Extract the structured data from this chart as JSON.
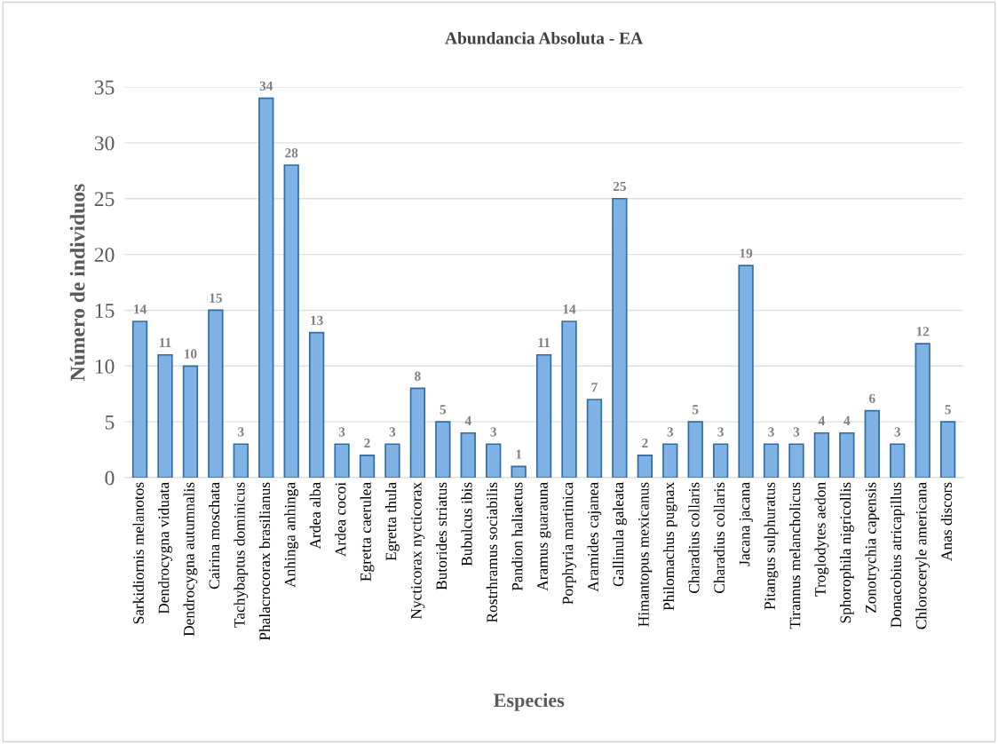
{
  "chart_data": {
    "type": "bar",
    "title": "Abundancia Absoluta - EA",
    "xlabel": "Especies",
    "ylabel": "Número de individuos",
    "categories": [
      "Sarkidiornis melanotos",
      "Dendrocygna viduata",
      "Dendrocygna autumnalis",
      "Cairina moschata",
      "Tachybaptus dominicus",
      "Phalacrocorax brasilianus",
      "Anhinga anhinga",
      "Ardea alba",
      "Ardea cocoi",
      "Egretta caerulea",
      "Egretta thula",
      "Nycticorax nycticorax",
      "Butorides striatus",
      "Bubulcus ibis",
      "Rostrhramus sociabilis",
      "Pandion haliaetus",
      "Aramus guarauna",
      "Porphyria martinica",
      "Aramides cajanea",
      "Gallinula galeata",
      "Himantopus mexicanus",
      "Philomachus pugnax",
      "Charadius collaris",
      "Charadius collaris",
      "Jacana jacana",
      "Pitangus sulphuratus",
      "Tirannus melancholicus",
      "Troglodytes aedon",
      "Sphorophila nigricollis",
      "Zonotrychia capensis",
      "Donacobius atricapillus",
      "Chloroceryle americana",
      "Anas discors"
    ],
    "values": [
      14,
      11,
      10,
      15,
      3,
      34,
      28,
      13,
      3,
      2,
      3,
      8,
      5,
      4,
      3,
      1,
      11,
      14,
      7,
      25,
      2,
      3,
      5,
      3,
      19,
      3,
      3,
      4,
      4,
      6,
      3,
      12,
      5
    ],
    "color": "#7fb2e5",
    "ylim": [
      0,
      35
    ],
    "yticks": [
      0,
      5,
      10,
      15,
      20,
      25,
      30,
      35
    ],
    "grid": "y",
    "data_labels": true,
    "legend": false
  }
}
